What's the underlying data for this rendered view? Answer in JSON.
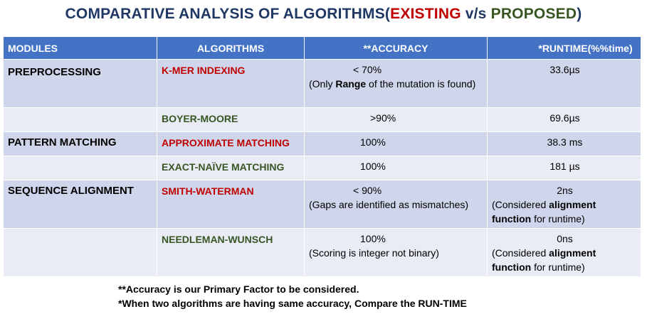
{
  "title": {
    "prefix": "COMPARATIVE ANALYSIS OF ALGORITHMS(",
    "existing": "EXISTING",
    "middle": " v/s ",
    "proposed": "PROPOSED",
    "suffix": ")"
  },
  "headers": {
    "modules": "MODULES",
    "algorithms": "ALGORITHMS",
    "accuracy": "**ACCURACY",
    "runtime": "*RUNTIME(%%time)"
  },
  "rows": {
    "r0": {
      "module": "PREPROCESSING",
      "algorithm": "K-MER INDEXING",
      "accuracy_main": "< 70%",
      "accuracy_note_a": "(Only ",
      "accuracy_note_bold": "Range",
      "accuracy_note_b": " of the mutation is found)",
      "runtime_main": "33.6µs"
    },
    "r1": {
      "module": "",
      "algorithm": "BOYER-MOORE",
      "accuracy_main": ">90%",
      "runtime_main": "69.6µs"
    },
    "r2": {
      "module": "PATTERN MATCHING",
      "algorithm": "APPROXIMATE MATCHING",
      "accuracy_main": "100%",
      "runtime_main": "38.3 ms"
    },
    "r3": {
      "module": "",
      "algorithm": "EXACT-NAÏVE MATCHING",
      "accuracy_main": "100%",
      "runtime_main": "181 µs"
    },
    "r4": {
      "module": "SEQUENCE ALIGNMENT",
      "algorithm": "SMITH-WATERMAN",
      "accuracy_main": "< 90%",
      "accuracy_note": "(Gaps are identified as mismatches)",
      "runtime_main": "2ns",
      "runtime_note_a": "(Considered ",
      "runtime_note_bold": "alignment function",
      "runtime_note_b": " for runtime)"
    },
    "r5": {
      "module": "",
      "algorithm": "NEEDLEMAN-WUNSCH",
      "accuracy_main": "100%",
      "accuracy_note": "(Scoring is integer not binary)",
      "runtime_main": "0ns",
      "runtime_note_a": "(Considered ",
      "runtime_note_bold": "alignment function",
      "runtime_note_b": " for runtime)"
    }
  },
  "notes": {
    "line1": "**Accuracy is our Primary Factor to be considered.",
    "line2": "*When two algorithms are having same accuracy, Compare the RUN-TIME"
  }
}
